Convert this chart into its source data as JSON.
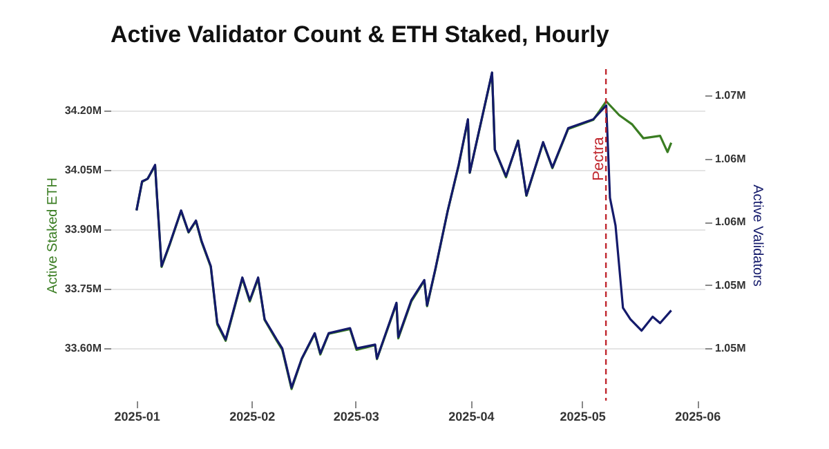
{
  "chart_data": {
    "type": "line",
    "title": "Active Validator Count & ETH Staked, Hourly",
    "ylabel": "Active Staked ETH",
    "y2label": "Active Validators",
    "xlim": [
      "2024-12-25",
      "2025-06-03"
    ],
    "xticks": [
      {
        "value": "2025-01-01",
        "label": "2025-01"
      },
      {
        "value": "2025-02-01",
        "label": "2025-02"
      },
      {
        "value": "2025-03-01",
        "label": "2025-03"
      },
      {
        "value": "2025-04-01",
        "label": "2025-04"
      },
      {
        "value": "2025-05-01",
        "label": "2025-05"
      },
      {
        "value": "2025-06-01",
        "label": "2025-06"
      }
    ],
    "ylim": [
      33467000,
      34305000
    ],
    "yticks": [
      {
        "value": 33600000,
        "label": "33.60M"
      },
      {
        "value": 33750000,
        "label": "33.75M"
      },
      {
        "value": 33900000,
        "label": "33.90M"
      },
      {
        "value": 34050000,
        "label": "34.05M"
      },
      {
        "value": 34200000,
        "label": "34.20M"
      }
    ],
    "y2lim": [
      1045870,
      1072070
    ],
    "y2ticks": [
      {
        "value": 1050000,
        "label": "1.05M"
      },
      {
        "value": 1055000,
        "label": "1.05M"
      },
      {
        "value": 1060000,
        "label": "1.06M"
      },
      {
        "value": 1065000,
        "label": "1.06M"
      },
      {
        "value": 1070000,
        "label": "1.07M"
      }
    ],
    "grid": "y",
    "ref_lines": [
      {
        "axis": "x",
        "value": "2025-05-07T10:00",
        "label": "Pectra",
        "color": "#c0262d",
        "line_style": "dashed"
      }
    ],
    "series": [
      {
        "color": "#3a7d22",
        "x": [
          "2025-01-01T00:00",
          "2025-01-02T12:00",
          "2025-01-04T00:00",
          "2025-01-06T00:00",
          "2025-01-06T12:00",
          "2025-01-07T18:00",
          "2025-01-10T00:00",
          "2025-01-13T00:00",
          "2025-01-15T00:00",
          "2025-01-17T00:00",
          "2025-01-18T12:00",
          "2025-01-21T00:00",
          "2025-01-22T18:00",
          "2025-01-25T00:00",
          "2025-01-29T12:00",
          "2025-01-31T12:00",
          "2025-02-02T18:00",
          "2025-02-04T12:00",
          "2025-02-07T18:00",
          "2025-02-09T06:00",
          "2025-02-11T18:00",
          "2025-02-14T12:00",
          "2025-02-18T00:00",
          "2025-02-19T12:00",
          "2025-02-21T18:00",
          "2025-02-27T12:00",
          "2025-03-01T06:00",
          "2025-03-06T06:00",
          "2025-03-06T18:00",
          "2025-03-12T00:00",
          "2025-03-12T12:00",
          "2025-03-16T00:00",
          "2025-03-19T12:00",
          "2025-03-20T06:00",
          "2025-03-22T12:00",
          "2025-03-25T18:00",
          "2025-03-28T18:00",
          "2025-03-31T06:00",
          "2025-03-31T18:00",
          "2025-04-06T18:00",
          "2025-04-07T12:00",
          "2025-04-10T12:00",
          "2025-04-13T18:00",
          "2025-04-16T00:00",
          "2025-04-20T12:00",
          "2025-04-23T00:00",
          "2025-04-27T06:00",
          "2025-05-04T00:00",
          "2025-05-07T12:00",
          "2025-05-11T00:00",
          "2025-05-14T12:00",
          "2025-05-17T12:00",
          "2025-05-22T00:00",
          "2025-05-24T00:00",
          "2025-05-25T00:00"
        ],
        "values": [
          33948000,
          34019700,
          34028000,
          34060500,
          33984800,
          33804800,
          33862700,
          33946400,
          33892000,
          33920900,
          33868600,
          33804800,
          33659300,
          33618500,
          33775500,
          33717600,
          33775500,
          33670800,
          33618500,
          33595500,
          33496400,
          33572100,
          33635900,
          33583600,
          33635900,
          33647800,
          33595500,
          33607000,
          33572100,
          33711600,
          33624400,
          33717600,
          33769900,
          33705700,
          33798800,
          33944300,
          34060500,
          34176600,
          34043000,
          34295200,
          34101300,
          34031500,
          34124300,
          33984800,
          34118700,
          34054500,
          34153600,
          34176600,
          34223400,
          34188500,
          34165100,
          34130200,
          34136200,
          34095300,
          34118700
        ]
      },
      {
        "color": "#141a6b",
        "axis": "y2",
        "x": [
          "2025-01-01T00:00",
          "2025-01-02T12:00",
          "2025-01-04T00:00",
          "2025-01-06T00:00",
          "2025-01-06T12:00",
          "2025-01-07T18:00",
          "2025-01-10T00:00",
          "2025-01-13T00:00",
          "2025-01-15T00:00",
          "2025-01-17T00:00",
          "2025-01-18T12:00",
          "2025-01-21T00:00",
          "2025-01-22T18:00",
          "2025-01-25T00:00",
          "2025-01-29T12:00",
          "2025-01-31T12:00",
          "2025-02-02T18:00",
          "2025-02-04T12:00",
          "2025-02-07T18:00",
          "2025-02-09T06:00",
          "2025-02-11T18:00",
          "2025-02-14T12:00",
          "2025-02-18T00:00",
          "2025-02-19T12:00",
          "2025-02-21T18:00",
          "2025-02-27T12:00",
          "2025-03-01T06:00",
          "2025-03-06T06:00",
          "2025-03-06T18:00",
          "2025-03-12T00:00",
          "2025-03-12T12:00",
          "2025-03-16T00:00",
          "2025-03-19T12:00",
          "2025-03-20T06:00",
          "2025-03-22T12:00",
          "2025-03-25T18:00",
          "2025-03-28T18:00",
          "2025-03-31T06:00",
          "2025-03-31T18:00",
          "2025-04-06T18:00",
          "2025-04-07T12:00",
          "2025-04-10T12:00",
          "2025-04-13T18:00",
          "2025-04-16T00:00",
          "2025-04-20T12:00",
          "2025-04-23T00:00",
          "2025-04-27T06:00",
          "2025-05-04T00:00",
          "2025-05-07T12:00",
          "2025-05-08T12:00",
          "2025-05-10T00:00",
          "2025-05-12T00:00",
          "2025-05-14T00:00",
          "2025-05-17T00:00",
          "2025-05-20T00:00",
          "2025-05-22T00:00",
          "2025-05-25T00:00"
        ],
        "values": [
          1060900,
          1063200,
          1063400,
          1064500,
          1062100,
          1056500,
          1058300,
          1060900,
          1059200,
          1060100,
          1058500,
          1056500,
          1052000,
          1050700,
          1055600,
          1053800,
          1055600,
          1052300,
          1050700,
          1050000,
          1046900,
          1049200,
          1051200,
          1049600,
          1051200,
          1051600,
          1050000,
          1050300,
          1049200,
          1053600,
          1050900,
          1053800,
          1055400,
          1053400,
          1056300,
          1060800,
          1064500,
          1068100,
          1063900,
          1071800,
          1065700,
          1063600,
          1066400,
          1062100,
          1066300,
          1064300,
          1067400,
          1068100,
          1069200,
          1061900,
          1059700,
          1053200,
          1052300,
          1051400,
          1052500,
          1052000,
          1053000
        ]
      }
    ]
  }
}
